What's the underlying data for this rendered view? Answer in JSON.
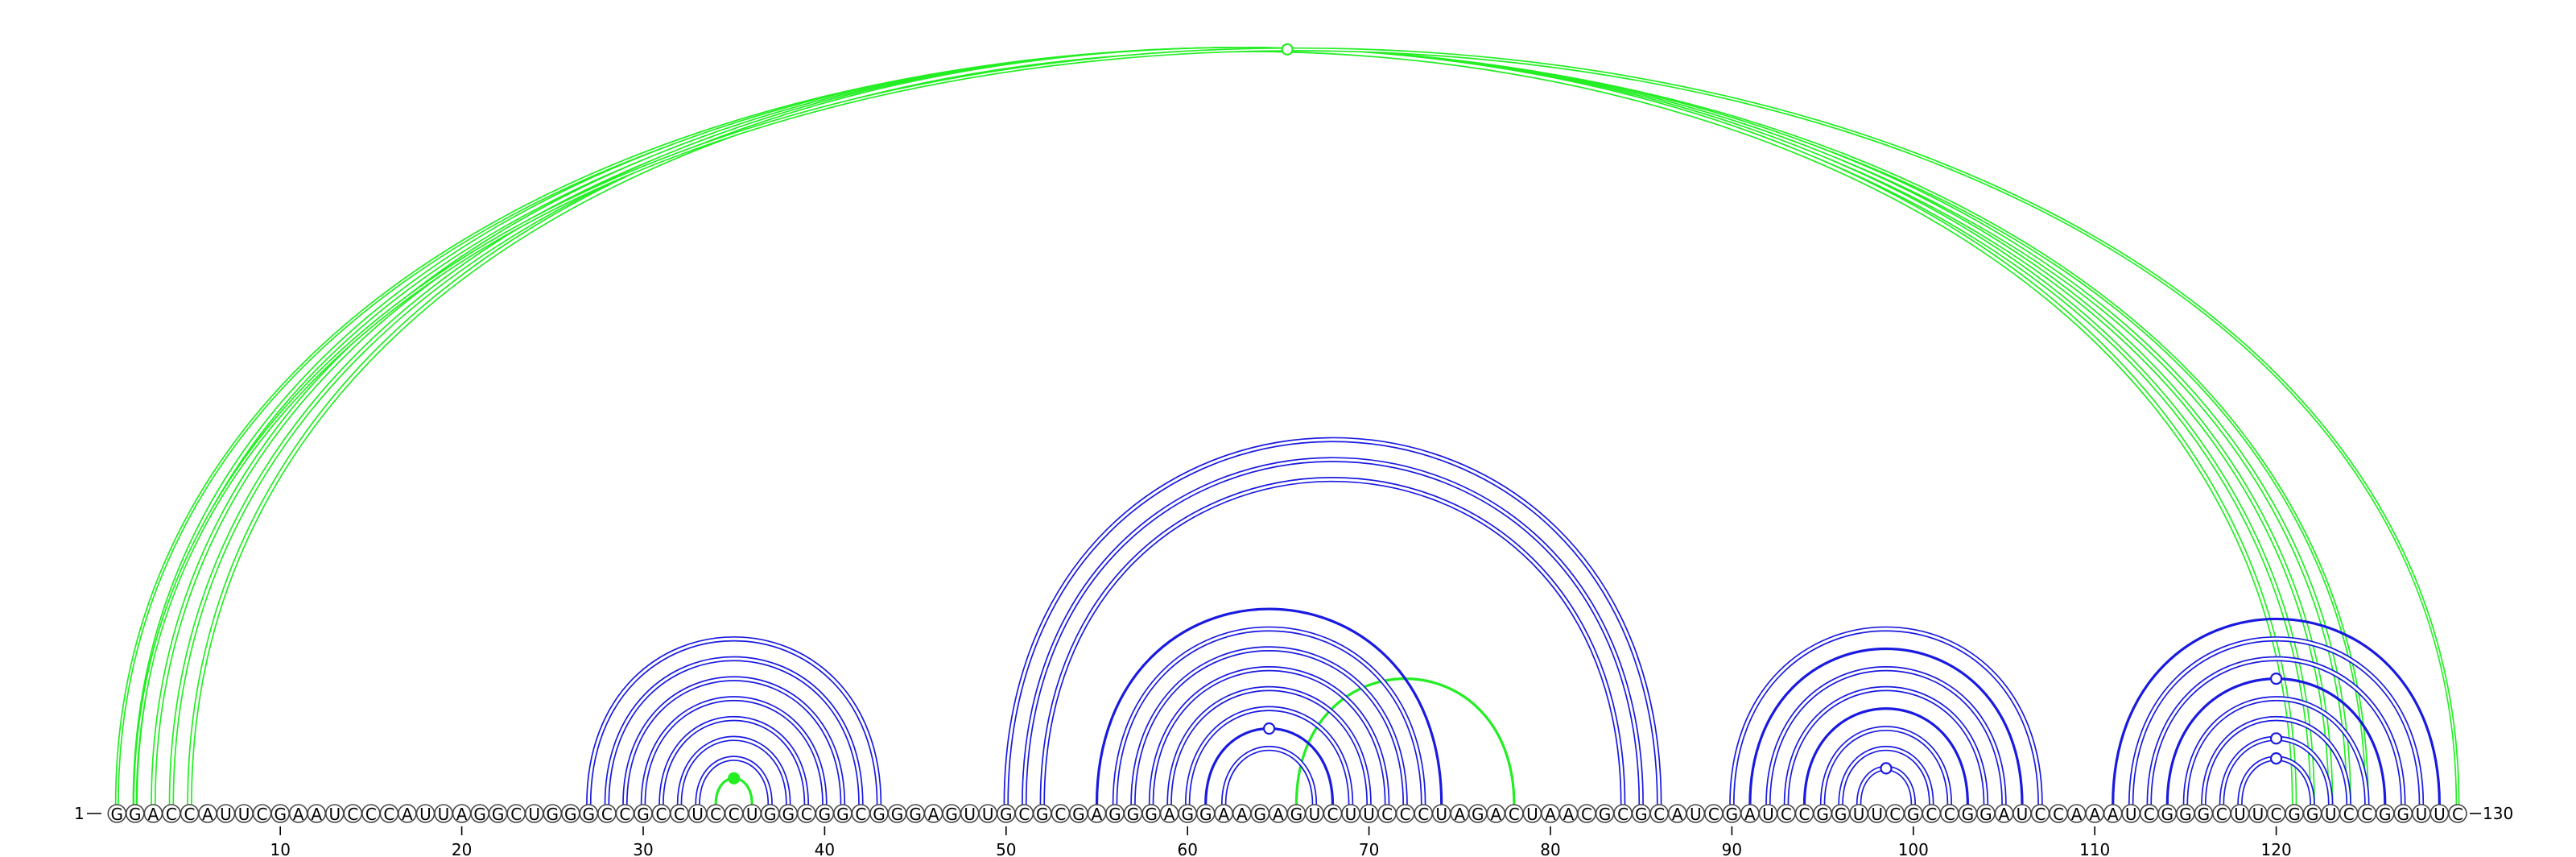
{
  "diagram": {
    "sequence": "GGACCAUUCGAAUCCCAUUAGGCUGGGCCGCCUCCUGGCGGCGGGAGUUGCGCGAGGGAGGAAGAGUCUUCCCUAGACUAACGCGCAUCGAUCCGGUUCGCCGGAUCCAAAUCGGGCUUCGGUCCGGUUC",
    "length": 130,
    "start_label": "1",
    "end_label": "130",
    "tick_labels": [
      "10",
      "20",
      "30",
      "40",
      "50",
      "60",
      "70",
      "80",
      "90",
      "100",
      "110",
      "120"
    ],
    "tick_positions": [
      10,
      20,
      30,
      40,
      50,
      60,
      70,
      80,
      90,
      100,
      110,
      120
    ],
    "colors": {
      "green": "#22ee22",
      "blue": "#1a1ae0",
      "nucleotide_stroke": "#444444"
    },
    "arcs": [
      {
        "i": 1,
        "j": 125,
        "color": "green",
        "style": "double-thin"
      },
      {
        "i": 2,
        "j": 124,
        "color": "green",
        "style": "double"
      },
      {
        "i": 3,
        "j": 123,
        "color": "green",
        "style": "double"
      },
      {
        "i": 4,
        "j": 122,
        "color": "green",
        "style": "double"
      },
      {
        "i": 5,
        "j": 121,
        "color": "green",
        "style": "double"
      },
      {
        "i": 2,
        "j": 130,
        "color": "green",
        "style": "double-thin"
      },
      {
        "i": 34,
        "j": 36,
        "color": "green",
        "style": "single"
      },
      {
        "i": 66,
        "j": 78,
        "color": "green",
        "style": "single"
      },
      {
        "i": 27,
        "j": 43,
        "color": "blue",
        "style": "double"
      },
      {
        "i": 28,
        "j": 42,
        "color": "blue",
        "style": "double"
      },
      {
        "i": 29,
        "j": 41,
        "color": "blue",
        "style": "double"
      },
      {
        "i": 30,
        "j": 40,
        "color": "blue",
        "style": "double"
      },
      {
        "i": 31,
        "j": 39,
        "color": "blue",
        "style": "double"
      },
      {
        "i": 32,
        "j": 38,
        "color": "blue",
        "style": "double"
      },
      {
        "i": 33,
        "j": 37,
        "color": "blue",
        "style": "double"
      },
      {
        "i": 50,
        "j": 86,
        "color": "blue",
        "style": "double"
      },
      {
        "i": 51,
        "j": 85,
        "color": "blue",
        "style": "double"
      },
      {
        "i": 52,
        "j": 84,
        "color": "blue",
        "style": "double"
      },
      {
        "i": 55,
        "j": 74,
        "color": "blue",
        "style": "single"
      },
      {
        "i": 56,
        "j": 73,
        "color": "blue",
        "style": "double"
      },
      {
        "i": 57,
        "j": 72,
        "color": "blue",
        "style": "double"
      },
      {
        "i": 58,
        "j": 71,
        "color": "blue",
        "style": "double"
      },
      {
        "i": 59,
        "j": 70,
        "color": "blue",
        "style": "double"
      },
      {
        "i": 60,
        "j": 69,
        "color": "blue",
        "style": "double"
      },
      {
        "i": 61,
        "j": 68,
        "color": "blue",
        "style": "single"
      },
      {
        "i": 62,
        "j": 67,
        "color": "blue",
        "style": "double"
      },
      {
        "i": 90,
        "j": 107,
        "color": "blue",
        "style": "double"
      },
      {
        "i": 91,
        "j": 106,
        "color": "blue",
        "style": "single"
      },
      {
        "i": 92,
        "j": 105,
        "color": "blue",
        "style": "double"
      },
      {
        "i": 93,
        "j": 104,
        "color": "blue",
        "style": "double"
      },
      {
        "i": 94,
        "j": 103,
        "color": "blue",
        "style": "single"
      },
      {
        "i": 95,
        "j": 102,
        "color": "blue",
        "style": "double"
      },
      {
        "i": 96,
        "j": 101,
        "color": "blue",
        "style": "double"
      },
      {
        "i": 97,
        "j": 100,
        "color": "blue",
        "style": "double"
      },
      {
        "i": 111,
        "j": 129,
        "color": "blue",
        "style": "single"
      },
      {
        "i": 112,
        "j": 128,
        "color": "blue",
        "style": "double"
      },
      {
        "i": 113,
        "j": 127,
        "color": "blue",
        "style": "double"
      },
      {
        "i": 114,
        "j": 126,
        "color": "blue",
        "style": "single"
      },
      {
        "i": 115,
        "j": 125,
        "color": "blue",
        "style": "double"
      },
      {
        "i": 116,
        "j": 124,
        "color": "blue",
        "style": "double"
      },
      {
        "i": 117,
        "j": 123,
        "color": "blue",
        "style": "double"
      },
      {
        "i": 118,
        "j": 122,
        "color": "blue",
        "style": "double"
      }
    ],
    "markers": [
      {
        "n": 65.5,
        "height_of_arc": [
          1,
          125
        ],
        "color": "green",
        "filled": false
      },
      {
        "n": 35,
        "height_of_arc": [
          34,
          36
        ],
        "color": "green",
        "filled": true
      },
      {
        "n": 64.5,
        "height_of_arc": [
          61,
          68
        ],
        "color": "blue",
        "filled": false
      },
      {
        "n": 98.5,
        "height_of_arc": [
          97,
          100
        ],
        "color": "blue",
        "filled": false
      },
      {
        "n": 120,
        "height_of_arc": [
          114,
          126
        ],
        "color": "blue",
        "filled": false
      },
      {
        "n": 120,
        "height_of_arc": [
          117,
          123
        ],
        "color": "blue",
        "filled": false
      },
      {
        "n": 120,
        "height_of_arc": [
          118,
          122
        ],
        "color": "blue",
        "filled": false
      }
    ]
  }
}
